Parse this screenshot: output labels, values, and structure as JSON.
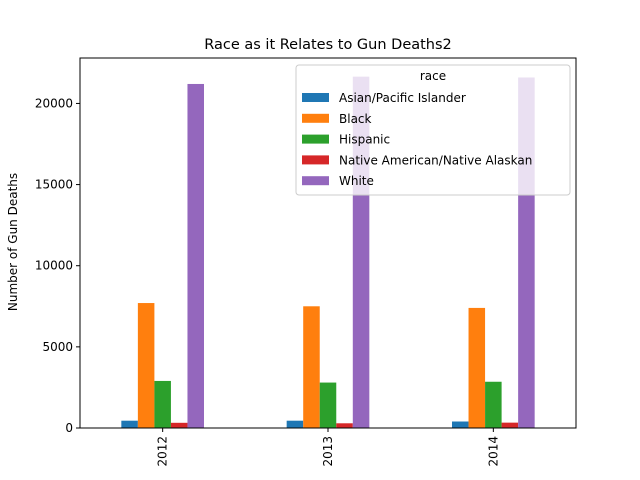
{
  "chart_data": {
    "type": "bar",
    "title": "Race as it Relates to Gun Deaths2",
    "xlabel": "",
    "ylabel": "Number of Gun Deaths",
    "categories": [
      "2012",
      "2013",
      "2014"
    ],
    "ylim": [
      0,
      22800
    ],
    "yticks": [
      0,
      5000,
      10000,
      15000,
      20000
    ],
    "grid": false,
    "legend": {
      "title": "race",
      "placement": "top-right"
    },
    "series": [
      {
        "name": "Asian/Pacific Islander",
        "color": "#1f77b4",
        "values": [
          450,
          450,
          400
        ]
      },
      {
        "name": "Black",
        "color": "#ff7f0e",
        "values": [
          7700,
          7500,
          7400
        ]
      },
      {
        "name": "Hispanic",
        "color": "#2ca02c",
        "values": [
          2900,
          2800,
          2850
        ]
      },
      {
        "name": "Native American/Native Alaskan",
        "color": "#d62728",
        "values": [
          320,
          290,
          330
        ]
      },
      {
        "name": "White",
        "color": "#9467bd",
        "values": [
          21200,
          21650,
          21600
        ]
      }
    ]
  }
}
